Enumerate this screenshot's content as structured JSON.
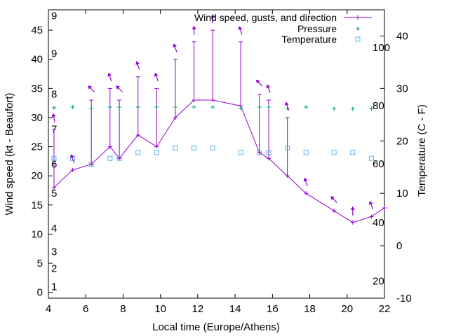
{
  "chart_data": {
    "type": "line",
    "xlabel": "Local time (Europe/Athens)",
    "ylabel": "Wind speed (kt - Beaufort)",
    "y2label": "Temperature (C - F)",
    "xlim": [
      4,
      22
    ],
    "ylim": [
      -1,
      48.5
    ],
    "y2lim": [
      -10,
      45
    ],
    "x_ticks": [
      4,
      6,
      8,
      10,
      12,
      14,
      16,
      18,
      20,
      22
    ],
    "y_ticks": [
      0,
      5,
      10,
      15,
      20,
      25,
      30,
      35,
      40,
      45
    ],
    "y2_ticks": [
      -10,
      0,
      10,
      20,
      30,
      40
    ],
    "beaufort_labels": [
      {
        "label": "1",
        "y": 1
      },
      {
        "label": "2",
        "y": 4.1
      },
      {
        "label": "3",
        "y": 7
      },
      {
        "label": "4",
        "y": 11
      },
      {
        "label": "5",
        "y": 17
      },
      {
        "label": "6",
        "y": 22
      },
      {
        "label": "7",
        "y": 28
      },
      {
        "label": "8",
        "y": 34
      },
      {
        "label": "9",
        "y": 41
      },
      {
        "label": "9",
        "y": 47.5
      }
    ],
    "fahrenheit_labels": [
      {
        "label": "20",
        "y2": -6.7
      },
      {
        "label": "40",
        "y2": 4.4
      },
      {
        "label": "60",
        "y2": 15.6
      },
      {
        "label": "80",
        "y2": 26.7
      },
      {
        "label": "100",
        "y2": 37.8
      }
    ],
    "legend": {
      "wind": "Wind speed, gusts, and direction",
      "pressure": "Pressure",
      "temperature": "Temperature"
    },
    "legend_position": "top-right",
    "grid": false,
    "colors": {
      "wind": "#9400d3",
      "pressure": "#009e73",
      "temperature": "#56b4e9"
    },
    "series": [
      {
        "name": "Wind speed, gusts, and direction",
        "x": [
          4.3,
          5.3,
          6.3,
          7.3,
          7.8,
          8.8,
          9.8,
          10.8,
          11.8,
          12.8,
          14.3,
          15.3,
          15.8,
          16.8,
          17.8,
          19.3,
          20.3,
          21.3,
          22.0
        ],
        "y": [
          18,
          21,
          22,
          25,
          23,
          27,
          25,
          30,
          33,
          33,
          32,
          24,
          23,
          20,
          17,
          14,
          12,
          13,
          14.5
        ],
        "gusts": [
          28,
          null,
          33,
          35,
          33,
          37,
          35,
          40,
          43,
          45,
          43,
          34,
          33,
          30,
          null,
          null,
          null,
          null,
          null
        ]
      },
      {
        "name": "Pressure",
        "x": [
          4.3,
          5.3,
          6.3,
          7.3,
          7.8,
          8.8,
          9.8,
          10.8,
          11.8,
          12.8,
          14.3,
          15.3,
          15.8,
          16.8,
          17.8,
          19.3,
          20.3,
          21.3
        ],
        "y": [
          31.7,
          31.8,
          31.6,
          31.8,
          31.8,
          31.8,
          31.8,
          31.8,
          31.8,
          31.8,
          31.6,
          31.8,
          31.8,
          31.6,
          31.8,
          31.5,
          31.5,
          31.5
        ]
      },
      {
        "name": "Temperature",
        "x": [
          4.3,
          5.3,
          6.3,
          7.3,
          7.8,
          8.8,
          9.8,
          10.8,
          11.8,
          12.8,
          14.3,
          15.3,
          15.8,
          16.8,
          17.8,
          19.3,
          20.3,
          21.3
        ],
        "y": [
          23,
          23,
          22,
          23,
          23,
          24,
          24,
          24.8,
          24.8,
          24.8,
          24,
          24,
          24,
          24.8,
          24,
          24,
          24,
          23
        ]
      }
    ],
    "direction_arrows_deg": [
      170,
      160,
      135,
      160,
      135,
      160,
      160,
      160,
      180,
      180,
      160,
      135,
      160,
      160,
      160,
      135,
      180,
      160
    ]
  }
}
